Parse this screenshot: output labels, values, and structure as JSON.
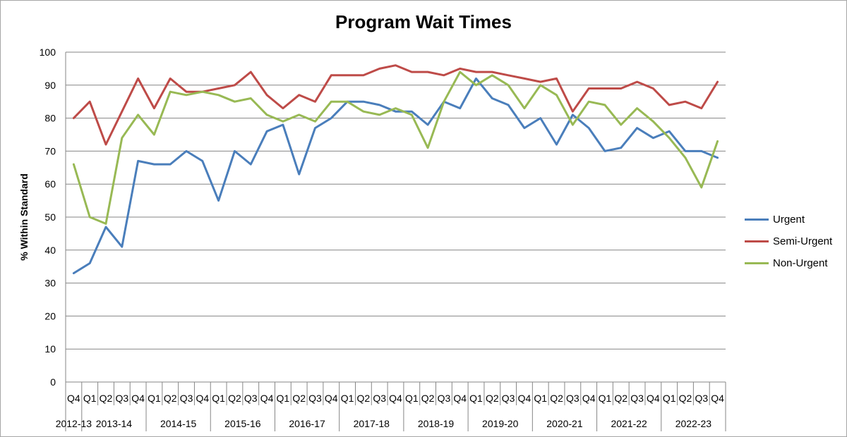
{
  "chart_data": {
    "type": "line",
    "title": "Program Wait Times",
    "xlabel": "",
    "ylabel": "% Within Standard",
    "ylim": [
      0,
      100
    ],
    "yticks": [
      "0",
      "10",
      "20",
      "30",
      "40",
      "50",
      "60",
      "70",
      "80",
      "90",
      "100"
    ],
    "grid": "horizontal",
    "legend_position": "right",
    "x": [
      "Q4",
      "Q1",
      "Q2",
      "Q3",
      "Q4",
      "Q1",
      "Q2",
      "Q3",
      "Q4",
      "Q1",
      "Q2",
      "Q3",
      "Q4",
      "Q1",
      "Q2",
      "Q3",
      "Q4",
      "Q1",
      "Q2",
      "Q3",
      "Q4",
      "Q1",
      "Q2",
      "Q3",
      "Q4",
      "Q1",
      "Q2",
      "Q3",
      "Q4",
      "Q1",
      "Q2",
      "Q3",
      "Q4",
      "Q1",
      "Q2",
      "Q3",
      "Q4",
      "Q1",
      "Q2",
      "Q3",
      "Q4"
    ],
    "fiscal_years": [
      {
        "label": "2012-13",
        "count": 1
      },
      {
        "label": "2013-14",
        "count": 4
      },
      {
        "label": "2014-15",
        "count": 4
      },
      {
        "label": "2015-16",
        "count": 4
      },
      {
        "label": "2016-17",
        "count": 4
      },
      {
        "label": "2017-18",
        "count": 4
      },
      {
        "label": "2018-19",
        "count": 4
      },
      {
        "label": "2019-20",
        "count": 4
      },
      {
        "label": "2020-21",
        "count": 4
      },
      {
        "label": "2021-22",
        "count": 4
      },
      {
        "label": "2022-23",
        "count": 4
      }
    ],
    "series": [
      {
        "name": "Urgent",
        "color": "#4a7ebb",
        "values": [
          33,
          36,
          47,
          41,
          67,
          66,
          66,
          70,
          67,
          55,
          70,
          66,
          76,
          78,
          63,
          77,
          80,
          85,
          85,
          84,
          82,
          82,
          78,
          85,
          83,
          92,
          86,
          84,
          77,
          80,
          72,
          81,
          77,
          70,
          71,
          77,
          74,
          76,
          70,
          70,
          68
        ]
      },
      {
        "name": "Semi-Urgent",
        "color": "#be4b48",
        "values": [
          80,
          85,
          72,
          82,
          92,
          83,
          92,
          88,
          88,
          89,
          90,
          94,
          87,
          83,
          87,
          85,
          93,
          93,
          93,
          95,
          96,
          94,
          94,
          93,
          95,
          94,
          94,
          93,
          92,
          91,
          92,
          82,
          89,
          89,
          89,
          91,
          89,
          84,
          85,
          83,
          91
        ]
      },
      {
        "name": "Non-Urgent",
        "color": "#98b954",
        "values": [
          66,
          50,
          48,
          74,
          81,
          75,
          88,
          87,
          88,
          87,
          85,
          86,
          81,
          79,
          81,
          79,
          85,
          85,
          82,
          81,
          83,
          81,
          71,
          85,
          94,
          90,
          93,
          90,
          83,
          90,
          87,
          78,
          85,
          84,
          78,
          83,
          79,
          74,
          68,
          59,
          73
        ]
      }
    ]
  }
}
